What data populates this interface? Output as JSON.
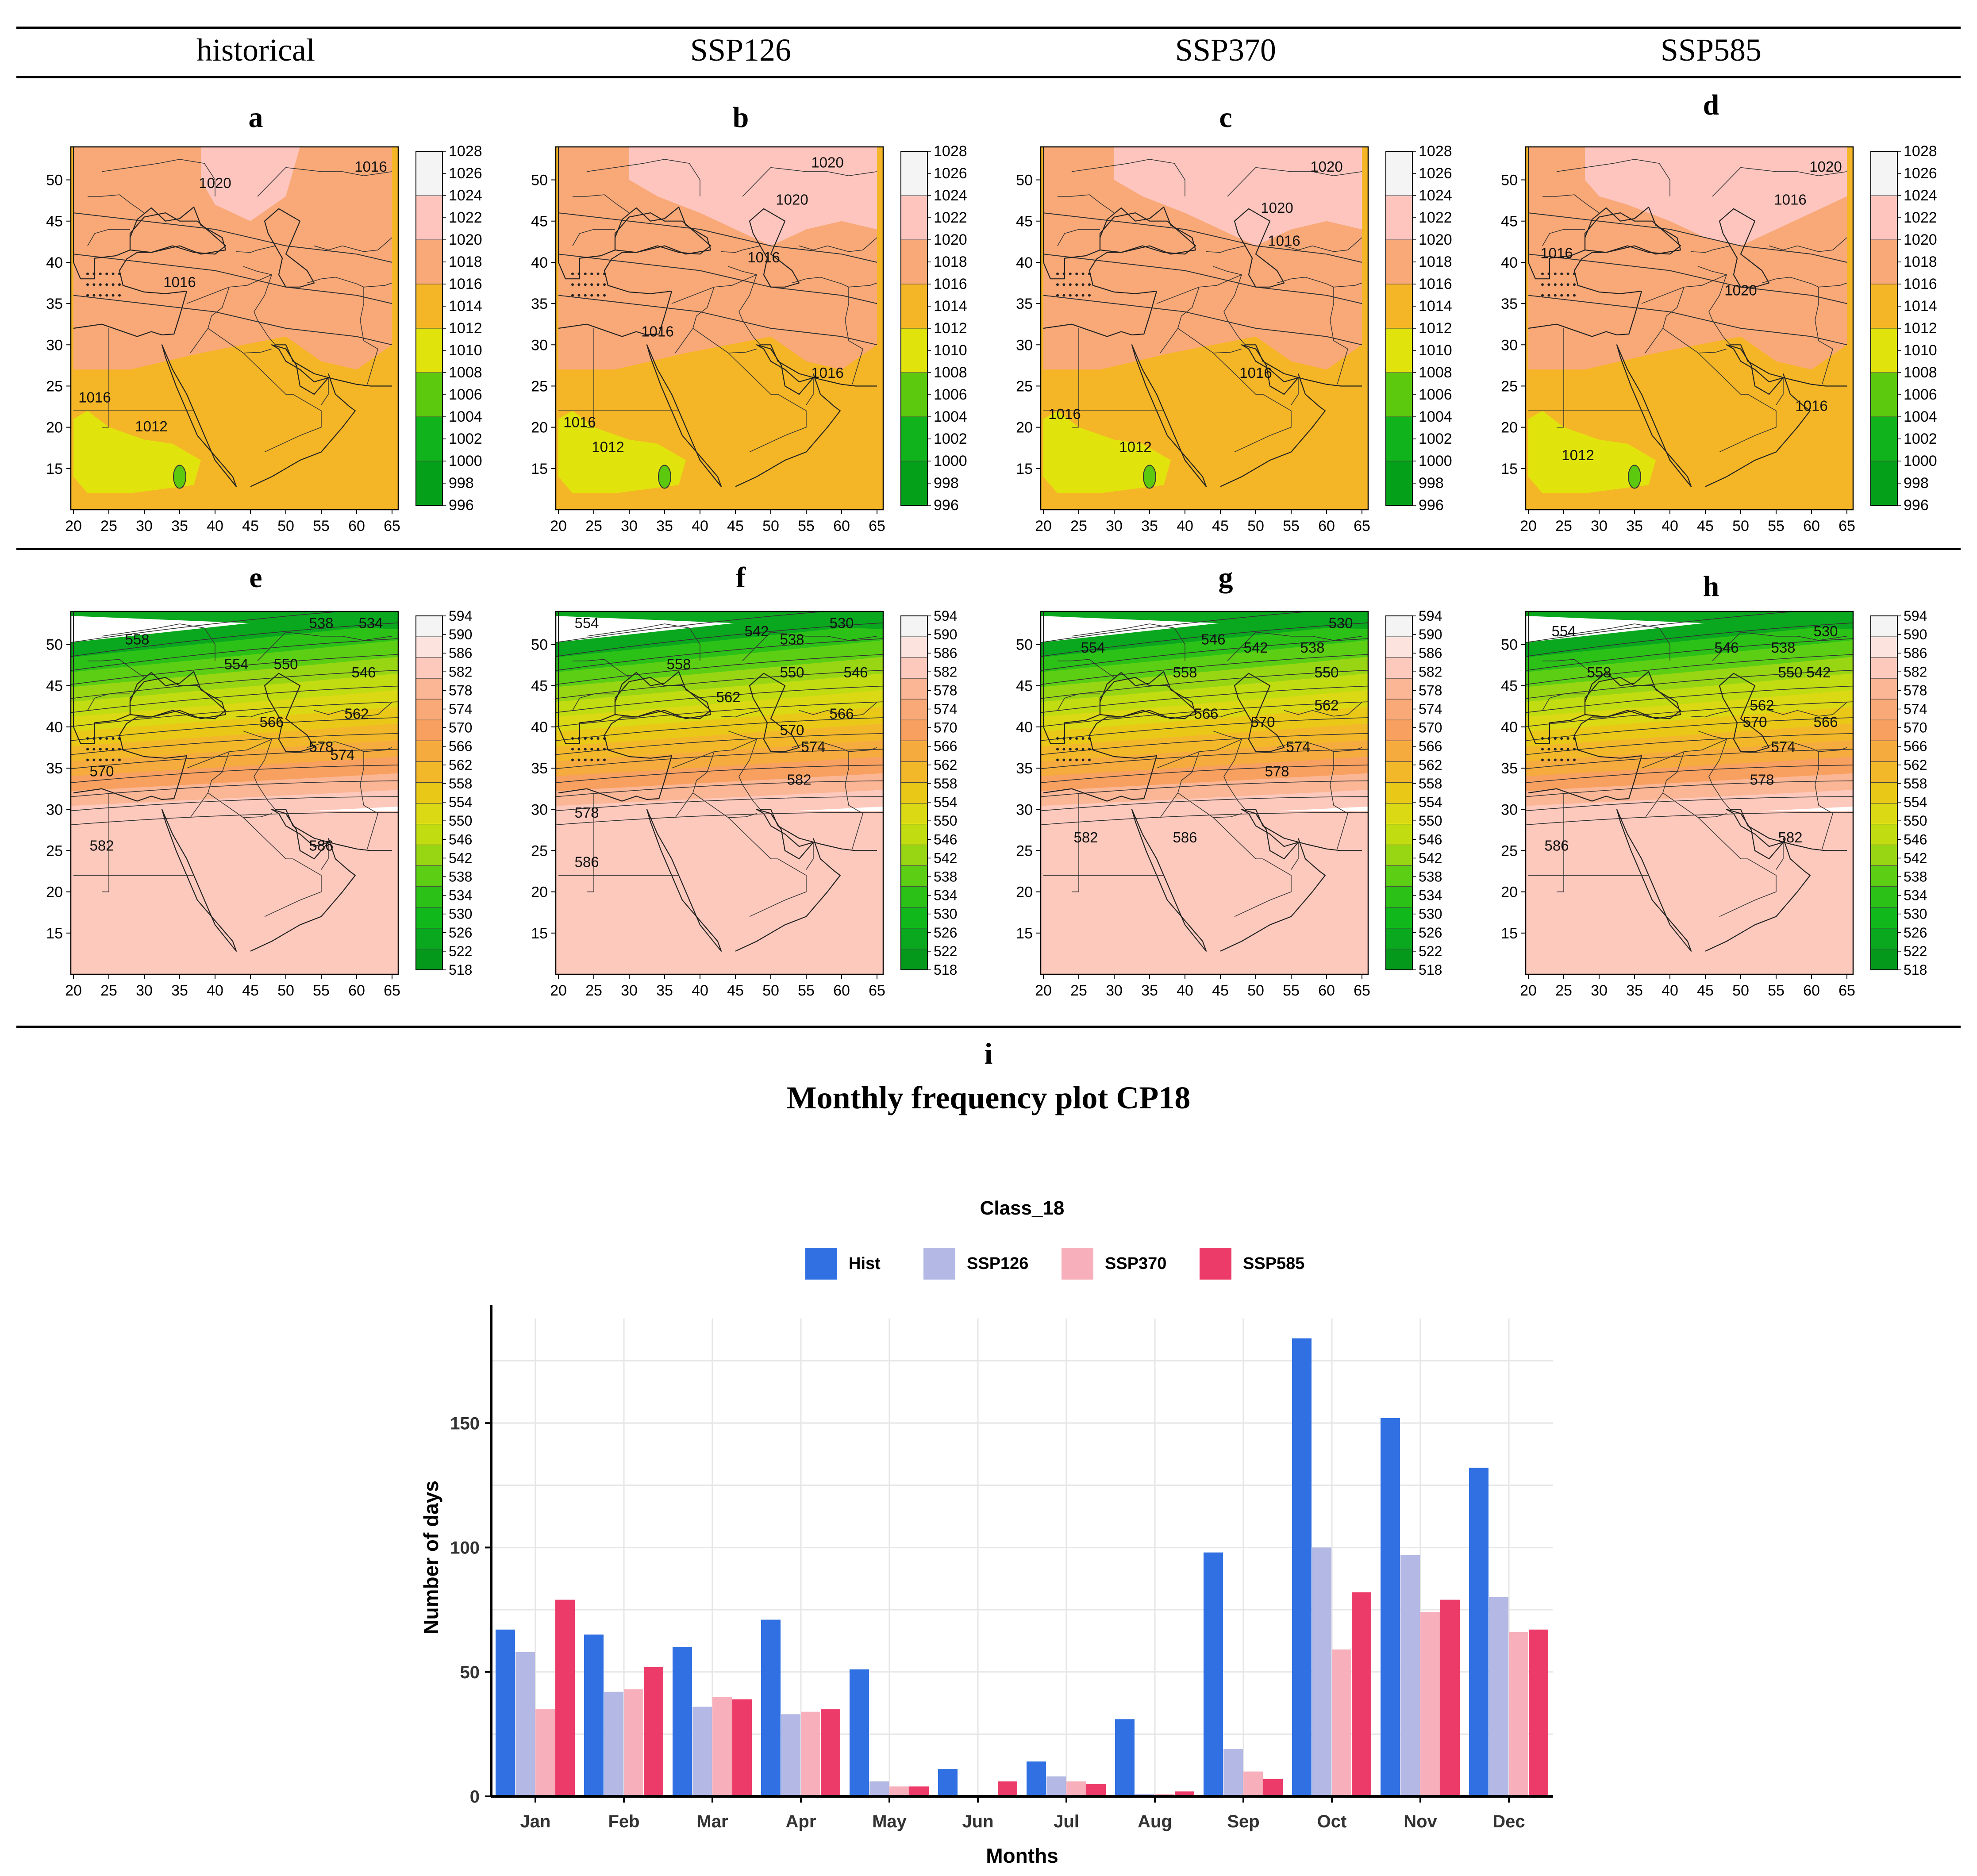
{
  "columns": [
    "historical",
    "SSP126",
    "SSP370",
    "SSP585"
  ],
  "top_panels": [
    "a",
    "b",
    "c",
    "d"
  ],
  "bottom_panels": [
    "e",
    "f",
    "g",
    "h"
  ],
  "chart_panel_label": "i",
  "chart_figure_title": "Monthly frequency plot CP18",
  "map_axes": {
    "x_ticks": [
      "20",
      "25",
      "30",
      "35",
      "40",
      "45",
      "50",
      "55",
      "60",
      "65"
    ],
    "y_ticks": [
      "50",
      "45",
      "40",
      "35",
      "30",
      "25",
      "20",
      "15"
    ]
  },
  "slp_legend": {
    "levels": [
      "1028",
      "1026",
      "1024",
      "1022",
      "1020",
      "1018",
      "1016",
      "1014",
      "1012",
      "1010",
      "1008",
      "1006",
      "1004",
      "1002",
      "1000",
      "998",
      "996"
    ],
    "colors": [
      "#f4f4f4",
      "#fdc5be",
      "#f9a877",
      "#f4b626",
      "#e1e40c",
      "#5cc80e",
      "#10b31b",
      "#05a01a"
    ]
  },
  "gph_legend": {
    "levels": [
      "594",
      "590",
      "586",
      "582",
      "578",
      "574",
      "570",
      "566",
      "562",
      "558",
      "554",
      "550",
      "546",
      "542",
      "538",
      "534",
      "530",
      "526",
      "522",
      "518"
    ],
    "colors": [
      "#f4f4f4",
      "#fde3dd",
      "#fdc9bd",
      "#fbb696",
      "#f9a877",
      "#f8a060",
      "#f5ab3d",
      "#f3b82a",
      "#e9c818",
      "#dbd814",
      "#c2dc12",
      "#98d614",
      "#5ccf14",
      "#2cc117",
      "#10b81b",
      "#0aa81e",
      "#05991c"
    ]
  },
  "maps_top": [
    {
      "labels": [
        "1020",
        "1016",
        "1016",
        "1016",
        "1012"
      ]
    },
    {
      "labels": [
        "1016",
        "1020",
        "1020",
        "1016",
        "1016",
        "1016",
        "1012"
      ]
    },
    {
      "labels": [
        "1016",
        "1020",
        "1020",
        "1016",
        "1016",
        "1012"
      ]
    },
    {
      "labels": [
        "1016",
        "1020",
        "1016",
        "1020",
        "1016",
        "1012"
      ]
    }
  ],
  "maps_bottom": [
    {
      "labels": [
        "538",
        "534",
        "558",
        "554",
        "550",
        "546",
        "566",
        "562",
        "574",
        "570",
        "578",
        "582",
        "586"
      ]
    },
    {
      "labels": [
        "554",
        "542",
        "538",
        "530",
        "550",
        "546",
        "558",
        "562",
        "566",
        "570",
        "574",
        "582",
        "578",
        "586"
      ]
    },
    {
      "labels": [
        "530",
        "554",
        "546",
        "542",
        "538",
        "550",
        "558",
        "566",
        "562",
        "570",
        "574",
        "578",
        "582",
        "586"
      ]
    },
    {
      "labels": [
        "554",
        "546",
        "538",
        "530",
        "542",
        "550",
        "558",
        "562",
        "566",
        "570",
        "574",
        "578",
        "582",
        "586"
      ]
    }
  ],
  "chart_data": {
    "type": "bar",
    "title": "Class_18",
    "xlabel": "Months",
    "ylabel": "Number of days",
    "categories": [
      "Jan",
      "Feb",
      "Mar",
      "Apr",
      "May",
      "Jun",
      "Jul",
      "Aug",
      "Sep",
      "Oct",
      "Nov",
      "Dec"
    ],
    "ylim": [
      0,
      192
    ],
    "yticks": [
      0,
      50,
      100,
      150
    ],
    "series": [
      {
        "name": "Hist",
        "color": "#3070e2",
        "values": [
          67,
          65,
          60,
          71,
          51,
          11,
          14,
          31,
          98,
          184,
          152,
          132
        ]
      },
      {
        "name": "SSP126",
        "color": "#b3b8e4",
        "values": [
          58,
          42,
          36,
          33,
          6,
          0,
          8,
          1,
          19,
          100,
          97,
          80
        ]
      },
      {
        "name": "SSP370",
        "color": "#f7afbb",
        "values": [
          35,
          43,
          40,
          34,
          4,
          0,
          6,
          1,
          10,
          59,
          74,
          66
        ]
      },
      {
        "name": "SSP585",
        "color": "#ec3b69",
        "values": [
          79,
          52,
          39,
          35,
          4,
          6,
          5,
          2,
          7,
          82,
          79,
          67
        ]
      }
    ]
  }
}
